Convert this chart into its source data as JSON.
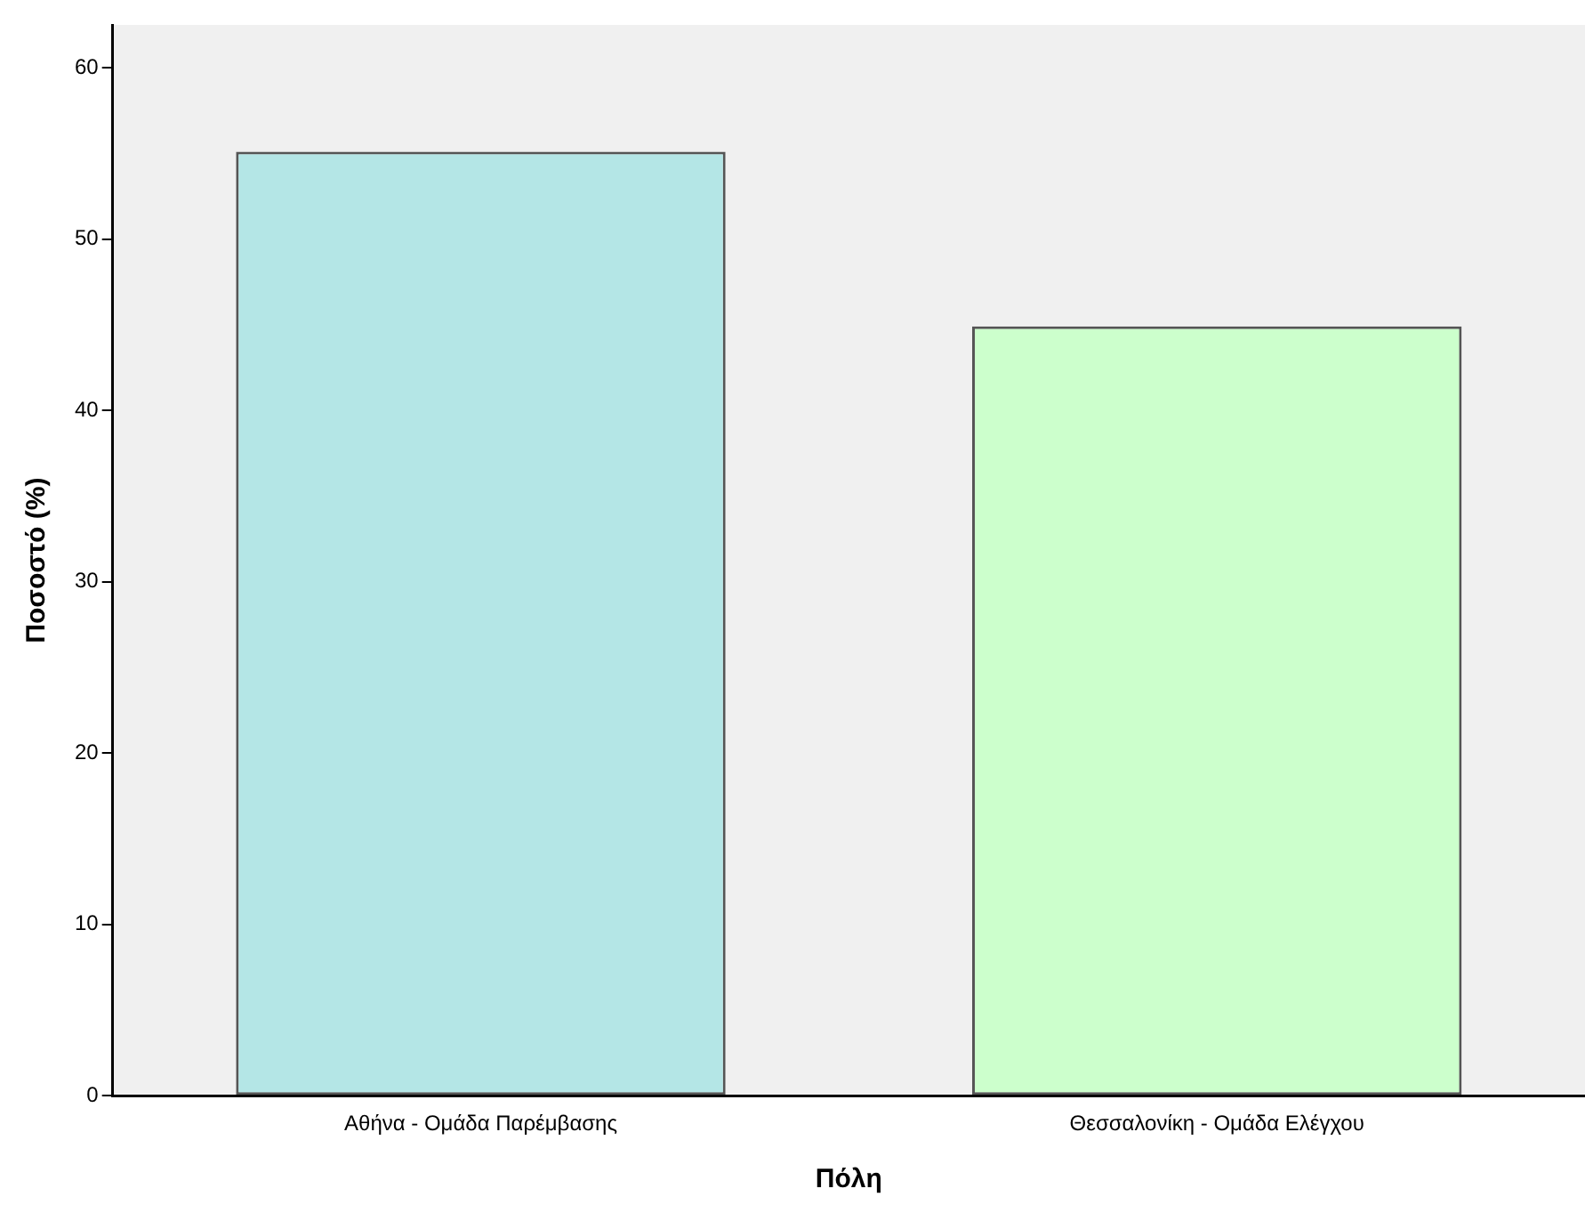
{
  "chart_data": {
    "type": "bar",
    "xlabel": "Πόλη",
    "ylabel": "Ποσοστό (%)",
    "categories": [
      "Αθήνα - Ομάδα Παρέμβασης",
      "Θεσσαλονίκη - Ομάδα Ελέγχου"
    ],
    "values": [
      55.1,
      44.9
    ],
    "colors": [
      "#b4e6e6",
      "#ccffcc"
    ],
    "ylim": [
      0,
      62.5
    ],
    "yticks": [
      0,
      10,
      20,
      30,
      40,
      50,
      60
    ],
    "grid": false,
    "legend": false
  }
}
